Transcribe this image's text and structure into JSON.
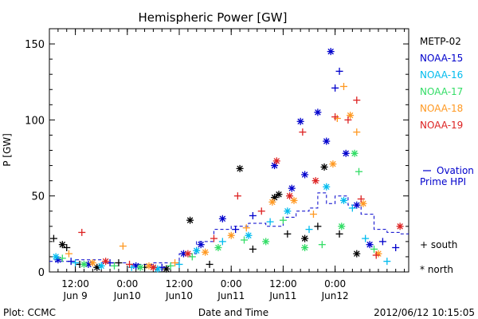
{
  "footer": {
    "plot_credit": "Plot: CCMC",
    "timestamp": "2012/06/12 10:15:05"
  },
  "chart_data": {
    "type": "scatter",
    "title": "Hemispheric Power [GW]",
    "xlabel": "Date and Time",
    "ylabel": "P [GW]",
    "ylim": [
      0,
      160
    ],
    "xlim": [
      "2012-06-09 06:00",
      "2012-06-12 17:00"
    ],
    "yticks": [
      0,
      50,
      100,
      150
    ],
    "x_ticks": [
      {
        "x": "2012-06-09 12:00",
        "line1": "12:00",
        "line2": "Jun 9"
      },
      {
        "x": "2012-06-10 00:00",
        "line1": "0:00",
        "line2": "Jun10"
      },
      {
        "x": "2012-06-10 12:00",
        "line1": "12:00",
        "line2": "Jun10"
      },
      {
        "x": "2012-06-11 00:00",
        "line1": "0:00",
        "line2": "Jun11"
      },
      {
        "x": "2012-06-11 12:00",
        "line1": "12:00",
        "line2": "Jun11"
      },
      {
        "x": "2012-06-12 00:00",
        "line1": "0:00",
        "line2": "Jun12"
      }
    ],
    "legend_position": "right",
    "marker_key": {
      "plus": "+ south",
      "asterisk": "* north"
    },
    "series": [
      {
        "name": "METP-02",
        "color": "#000000",
        "points": [
          {
            "t": "2012-06-09 07:00",
            "y": 22,
            "m": "+"
          },
          {
            "t": "2012-06-09 09:00",
            "y": 18,
            "m": "*"
          },
          {
            "t": "2012-06-09 10:00",
            "y": 16,
            "m": "+"
          },
          {
            "t": "2012-06-09 13:00",
            "y": 5,
            "m": "+"
          },
          {
            "t": "2012-06-09 17:00",
            "y": 3,
            "m": "*"
          },
          {
            "t": "2012-06-09 22:00",
            "y": 6,
            "m": "+"
          },
          {
            "t": "2012-06-10 04:00",
            "y": 3,
            "m": "+"
          },
          {
            "t": "2012-06-10 09:00",
            "y": 2,
            "m": "*"
          },
          {
            "t": "2012-06-10 14:30",
            "y": 34,
            "m": "*"
          },
          {
            "t": "2012-06-10 19:00",
            "y": 5,
            "m": "+"
          },
          {
            "t": "2012-06-11 02:00",
            "y": 68,
            "m": "*"
          },
          {
            "t": "2012-06-11 05:00",
            "y": 15,
            "m": "+"
          },
          {
            "t": "2012-06-11 10:00",
            "y": 49,
            "m": "*"
          },
          {
            "t": "2012-06-11 11:00",
            "y": 51,
            "m": "*"
          },
          {
            "t": "2012-06-11 13:00",
            "y": 25,
            "m": "+"
          },
          {
            "t": "2012-06-11 17:00",
            "y": 22,
            "m": "*"
          },
          {
            "t": "2012-06-11 20:00",
            "y": 30,
            "m": "+"
          },
          {
            "t": "2012-06-11 21:30",
            "y": 69,
            "m": "*"
          },
          {
            "t": "2012-06-12 01:00",
            "y": 25,
            "m": "+"
          },
          {
            "t": "2012-06-12 05:00",
            "y": 12,
            "m": "*"
          }
        ]
      },
      {
        "name": "NOAA-15",
        "color": "#0000cc",
        "points": [
          {
            "t": "2012-06-09 08:00",
            "y": 8,
            "m": "*"
          },
          {
            "t": "2012-06-09 11:00",
            "y": 7,
            "m": "+"
          },
          {
            "t": "2012-06-09 15:00",
            "y": 5,
            "m": "*"
          },
          {
            "t": "2012-06-09 20:00",
            "y": 6,
            "m": "+"
          },
          {
            "t": "2012-06-10 02:00",
            "y": 4,
            "m": "*"
          },
          {
            "t": "2012-06-10 08:00",
            "y": 3,
            "m": "+"
          },
          {
            "t": "2012-06-10 13:00",
            "y": 12,
            "m": "*"
          },
          {
            "t": "2012-06-10 17:00",
            "y": 18,
            "m": "*"
          },
          {
            "t": "2012-06-10 22:00",
            "y": 35,
            "m": "*"
          },
          {
            "t": "2012-06-11 01:00",
            "y": 28,
            "m": "+"
          },
          {
            "t": "2012-06-11 05:00",
            "y": 37,
            "m": "+"
          },
          {
            "t": "2012-06-11 10:00",
            "y": 70,
            "m": "*"
          },
          {
            "t": "2012-06-11 14:00",
            "y": 55,
            "m": "*"
          },
          {
            "t": "2012-06-11 16:00",
            "y": 99,
            "m": "*"
          },
          {
            "t": "2012-06-11 17:00",
            "y": 64,
            "m": "*"
          },
          {
            "t": "2012-06-11 20:00",
            "y": 105,
            "m": "*"
          },
          {
            "t": "2012-06-11 22:00",
            "y": 86,
            "m": "*"
          },
          {
            "t": "2012-06-11 23:00",
            "y": 145,
            "m": "*"
          },
          {
            "t": "2012-06-12 00:00",
            "y": 121,
            "m": "+"
          },
          {
            "t": "2012-06-12 01:00",
            "y": 132,
            "m": "+"
          },
          {
            "t": "2012-06-12 02:30",
            "y": 78,
            "m": "*"
          },
          {
            "t": "2012-06-12 05:00",
            "y": 44,
            "m": "*"
          },
          {
            "t": "2012-06-12 08:00",
            "y": 18,
            "m": "*"
          },
          {
            "t": "2012-06-12 11:00",
            "y": 20,
            "m": "+"
          },
          {
            "t": "2012-06-12 14:00",
            "y": 16,
            "m": "+"
          }
        ]
      },
      {
        "name": "NOAA-16",
        "color": "#00bbee",
        "points": [
          {
            "t": "2012-06-09 07:30",
            "y": 10,
            "m": "*"
          },
          {
            "t": "2012-06-09 12:00",
            "y": 6,
            "m": "+"
          },
          {
            "t": "2012-06-09 18:00",
            "y": 4,
            "m": "*"
          },
          {
            "t": "2012-06-10 01:00",
            "y": 3,
            "m": "+"
          },
          {
            "t": "2012-06-10 07:00",
            "y": 2,
            "m": "*"
          },
          {
            "t": "2012-06-10 12:00",
            "y": 5,
            "m": "+"
          },
          {
            "t": "2012-06-10 16:00",
            "y": 14,
            "m": "*"
          },
          {
            "t": "2012-06-10 22:00",
            "y": 20,
            "m": "+"
          },
          {
            "t": "2012-06-11 04:00",
            "y": 24,
            "m": "*"
          },
          {
            "t": "2012-06-11 09:00",
            "y": 33,
            "m": "+"
          },
          {
            "t": "2012-06-11 13:00",
            "y": 40,
            "m": "*"
          },
          {
            "t": "2012-06-11 18:00",
            "y": 28,
            "m": "+"
          },
          {
            "t": "2012-06-11 22:00",
            "y": 56,
            "m": "*"
          },
          {
            "t": "2012-06-12 02:00",
            "y": 47,
            "m": "*"
          },
          {
            "t": "2012-06-12 04:00",
            "y": 42,
            "m": "+"
          },
          {
            "t": "2012-06-12 07:00",
            "y": 22,
            "m": "+"
          },
          {
            "t": "2012-06-12 12:00",
            "y": 7,
            "m": "+"
          }
        ]
      },
      {
        "name": "NOAA-17",
        "color": "#33dd66",
        "points": [
          {
            "t": "2012-06-09 09:00",
            "y": 9,
            "m": "+"
          },
          {
            "t": "2012-06-09 14:00",
            "y": 5,
            "m": "*"
          },
          {
            "t": "2012-06-09 21:00",
            "y": 4,
            "m": "+"
          },
          {
            "t": "2012-06-10 03:00",
            "y": 3,
            "m": "*"
          },
          {
            "t": "2012-06-10 10:00",
            "y": 4,
            "m": "+"
          },
          {
            "t": "2012-06-10 15:00",
            "y": 10,
            "m": "+"
          },
          {
            "t": "2012-06-10 21:00",
            "y": 16,
            "m": "*"
          },
          {
            "t": "2012-06-11 03:00",
            "y": 21,
            "m": "+"
          },
          {
            "t": "2012-06-11 08:00",
            "y": 20,
            "m": "*"
          },
          {
            "t": "2012-06-11 12:00",
            "y": 34,
            "m": "+"
          },
          {
            "t": "2012-06-11 17:00",
            "y": 16,
            "m": "*"
          },
          {
            "t": "2012-06-11 21:00",
            "y": 18,
            "m": "+"
          },
          {
            "t": "2012-06-12 01:30",
            "y": 30,
            "m": "*"
          },
          {
            "t": "2012-06-12 04:30",
            "y": 78,
            "m": "*"
          },
          {
            "t": "2012-06-12 05:30",
            "y": 66,
            "m": "+"
          },
          {
            "t": "2012-06-12 09:00",
            "y": 15,
            "m": "+"
          }
        ]
      },
      {
        "name": "NOAA-18",
        "color": "#ff9922",
        "points": [
          {
            "t": "2012-06-09 10:30",
            "y": 12,
            "m": "+"
          },
          {
            "t": "2012-06-09 16:00",
            "y": 6,
            "m": "*"
          },
          {
            "t": "2012-06-09 23:00",
            "y": 17,
            "m": "+"
          },
          {
            "t": "2012-06-10 05:00",
            "y": 4,
            "m": "*"
          },
          {
            "t": "2012-06-10 11:00",
            "y": 6,
            "m": "+"
          },
          {
            "t": "2012-06-10 18:00",
            "y": 13,
            "m": "*"
          },
          {
            "t": "2012-06-11 00:00",
            "y": 24,
            "m": "*"
          },
          {
            "t": "2012-06-11 03:30",
            "y": 29,
            "m": "+"
          },
          {
            "t": "2012-06-11 09:30",
            "y": 46,
            "m": "*"
          },
          {
            "t": "2012-06-11 14:30",
            "y": 47,
            "m": "*"
          },
          {
            "t": "2012-06-11 19:00",
            "y": 38,
            "m": "+"
          },
          {
            "t": "2012-06-11 23:30",
            "y": 71,
            "m": "*"
          },
          {
            "t": "2012-06-12 00:30",
            "y": 101,
            "m": "+"
          },
          {
            "t": "2012-06-12 02:00",
            "y": 122,
            "m": "+"
          },
          {
            "t": "2012-06-12 03:30",
            "y": 103,
            "m": "*"
          },
          {
            "t": "2012-06-12 05:00",
            "y": 92,
            "m": "+"
          },
          {
            "t": "2012-06-12 06:30",
            "y": 45,
            "m": "*"
          },
          {
            "t": "2012-06-12 10:00",
            "y": 12,
            "m": "*"
          }
        ]
      },
      {
        "name": "NOAA-19",
        "color": "#dd2222",
        "points": [
          {
            "t": "2012-06-09 13:30",
            "y": 26,
            "m": "+"
          },
          {
            "t": "2012-06-09 19:00",
            "y": 7,
            "m": "*"
          },
          {
            "t": "2012-06-10 00:30",
            "y": 5,
            "m": "+"
          },
          {
            "t": "2012-06-10 06:00",
            "y": 3,
            "m": "*"
          },
          {
            "t": "2012-06-10 14:00",
            "y": 12,
            "m": "*"
          },
          {
            "t": "2012-06-10 20:00",
            "y": 22,
            "m": "+"
          },
          {
            "t": "2012-06-11 01:30",
            "y": 50,
            "m": "+"
          },
          {
            "t": "2012-06-11 07:00",
            "y": 40,
            "m": "+"
          },
          {
            "t": "2012-06-11 10:30",
            "y": 73,
            "m": "*"
          },
          {
            "t": "2012-06-11 13:30",
            "y": 50,
            "m": "*"
          },
          {
            "t": "2012-06-11 16:30",
            "y": 92,
            "m": "+"
          },
          {
            "t": "2012-06-11 19:30",
            "y": 60,
            "m": "*"
          },
          {
            "t": "2012-06-12 00:00",
            "y": 102,
            "m": "+"
          },
          {
            "t": "2012-06-12 03:00",
            "y": 100,
            "m": "+"
          },
          {
            "t": "2012-06-12 05:00",
            "y": 113,
            "m": "+"
          },
          {
            "t": "2012-06-12 06:00",
            "y": 48,
            "m": "+"
          },
          {
            "t": "2012-06-12 09:30",
            "y": 11,
            "m": "+"
          },
          {
            "t": "2012-06-12 15:00",
            "y": 30,
            "m": "*"
          }
        ]
      },
      {
        "name": "Ovation Prime HPI",
        "color": "#0000cc",
        "style": "dashed-step",
        "points": [
          {
            "t": "2012-06-09 06:00",
            "y": 7
          },
          {
            "t": "2012-06-09 12:00",
            "y": 8
          },
          {
            "t": "2012-06-09 18:00",
            "y": 6
          },
          {
            "t": "2012-06-10 00:00",
            "y": 5
          },
          {
            "t": "2012-06-10 06:00",
            "y": 6
          },
          {
            "t": "2012-06-10 12:00",
            "y": 12
          },
          {
            "t": "2012-06-10 16:00",
            "y": 20
          },
          {
            "t": "2012-06-10 20:00",
            "y": 28
          },
          {
            "t": "2012-06-11 00:00",
            "y": 30
          },
          {
            "t": "2012-06-11 04:00",
            "y": 32
          },
          {
            "t": "2012-06-11 08:00",
            "y": 30
          },
          {
            "t": "2012-06-11 12:00",
            "y": 36
          },
          {
            "t": "2012-06-11 15:00",
            "y": 40
          },
          {
            "t": "2012-06-11 18:00",
            "y": 42
          },
          {
            "t": "2012-06-11 20:00",
            "y": 52
          },
          {
            "t": "2012-06-11 22:00",
            "y": 45
          },
          {
            "t": "2012-06-12 00:00",
            "y": 50
          },
          {
            "t": "2012-06-12 03:00",
            "y": 44
          },
          {
            "t": "2012-06-12 06:00",
            "y": 38
          },
          {
            "t": "2012-06-12 09:00",
            "y": 28
          },
          {
            "t": "2012-06-12 12:00",
            "y": 26
          },
          {
            "t": "2012-06-12 15:00",
            "y": 25
          },
          {
            "t": "2012-06-12 17:00",
            "y": 25
          }
        ]
      }
    ]
  }
}
